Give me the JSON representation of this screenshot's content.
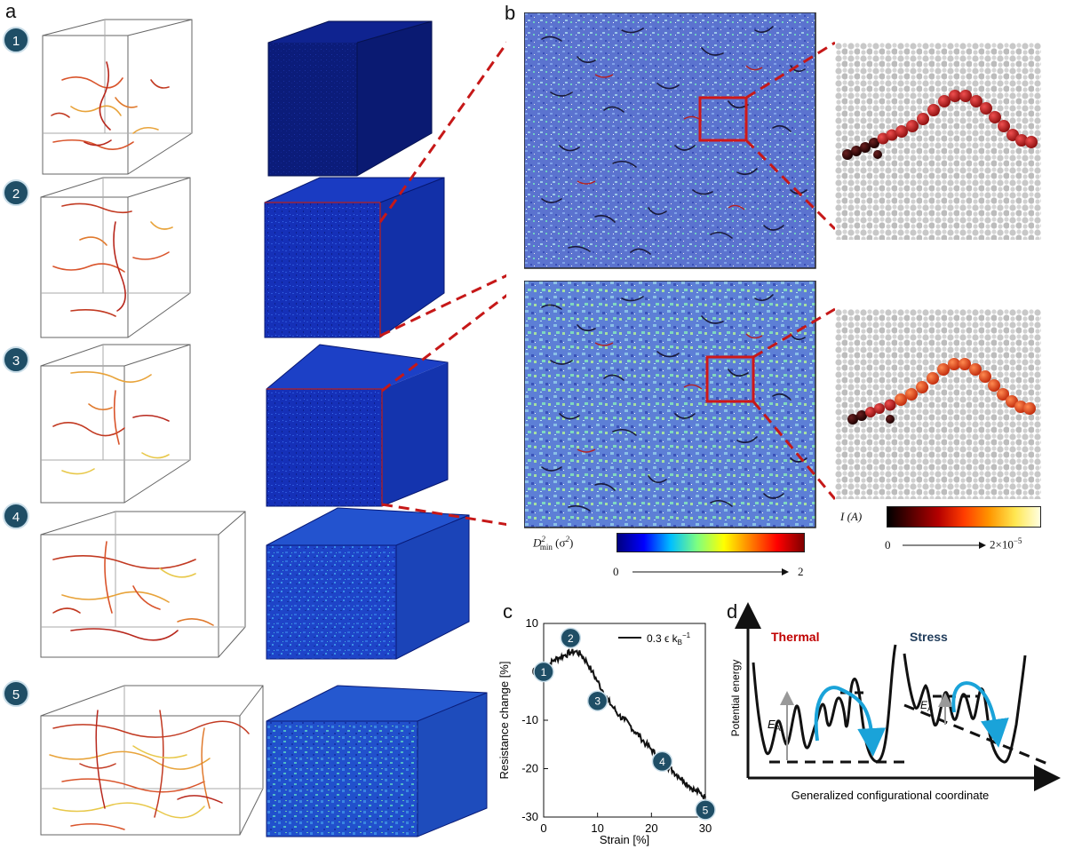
{
  "figure": {
    "panel_labels": {
      "a": "a",
      "b": "b",
      "c": "c",
      "d": "d"
    },
    "state_badges": [
      "1",
      "2",
      "3",
      "4",
      "5"
    ],
    "panel_b": {
      "colorbar_dmin": {
        "label_main": "D",
        "label_sup": "2",
        "label_sub": "min",
        "label_unit": " (σ",
        "label_unit_sup": "2",
        "label_unit_close": ")",
        "tick_min": "0",
        "tick_max": "2",
        "colors": [
          "#00007f",
          "#0000ff",
          "#00bfff",
          "#7fff7f",
          "#ffff00",
          "#ff7f00",
          "#ff0000",
          "#7f0000"
        ]
      },
      "colorbar_current": {
        "label": "I (A)",
        "tick_min": "0",
        "tick_max_base": "2×10",
        "tick_max_exp": "−5",
        "colors": [
          "#000000",
          "#5a0000",
          "#b40000",
          "#ff3c00",
          "#ff9600",
          "#ffe650",
          "#ffffe0"
        ]
      }
    },
    "chart_data": {
      "type": "line",
      "title": "",
      "xlabel": "Strain [%]",
      "ylabel": "Resistance change [%]",
      "xlim": [
        0,
        30
      ],
      "ylim": [
        -30,
        10
      ],
      "xticks": [
        "0",
        "10",
        "20",
        "30"
      ],
      "yticks": [
        "10",
        "0",
        "-10",
        "-20",
        "-30"
      ],
      "legend": "0.3 ϵ k",
      "legend_sub": "B",
      "legend_sup": "−1",
      "series": [
        {
          "name": "0.3 ϵ kB^-1",
          "x": [
            0,
            1,
            2,
            3,
            4,
            5,
            6,
            7,
            8,
            9,
            10,
            11,
            12,
            13,
            14,
            15,
            16,
            17,
            18,
            19,
            20,
            21,
            22,
            23,
            24,
            25,
            26,
            27,
            28,
            29,
            30
          ],
          "y": [
            0,
            1.5,
            2.5,
            3,
            3.5,
            4,
            4.2,
            3.5,
            2,
            0,
            -2,
            -4,
            -6,
            -7.5,
            -9,
            -10,
            -11,
            -12.5,
            -13.5,
            -15,
            -16,
            -17.5,
            -18.5,
            -19.5,
            -20.5,
            -21.5,
            -22.5,
            -23.5,
            -24.5,
            -25,
            -26
          ]
        }
      ],
      "markers": [
        {
          "label": "1",
          "x": 0,
          "y": 0
        },
        {
          "label": "2",
          "x": 5,
          "y": 7
        },
        {
          "label": "3",
          "x": 10,
          "y": -6
        },
        {
          "label": "4",
          "x": 22,
          "y": -18.5
        },
        {
          "label": "5",
          "x": 30,
          "y": -28.5
        }
      ]
    },
    "panel_d": {
      "label_thermal": "Thermal",
      "label_stress": "Stress",
      "ylabel": "Potential energy",
      "xlabel": "Generalized configurational coordinate",
      "ea_main": "E",
      "ea_sub": "A",
      "thermal_color": "#c00000",
      "stress_color": "#1f3b5a",
      "arrow_color": "#1aa3d9"
    }
  }
}
